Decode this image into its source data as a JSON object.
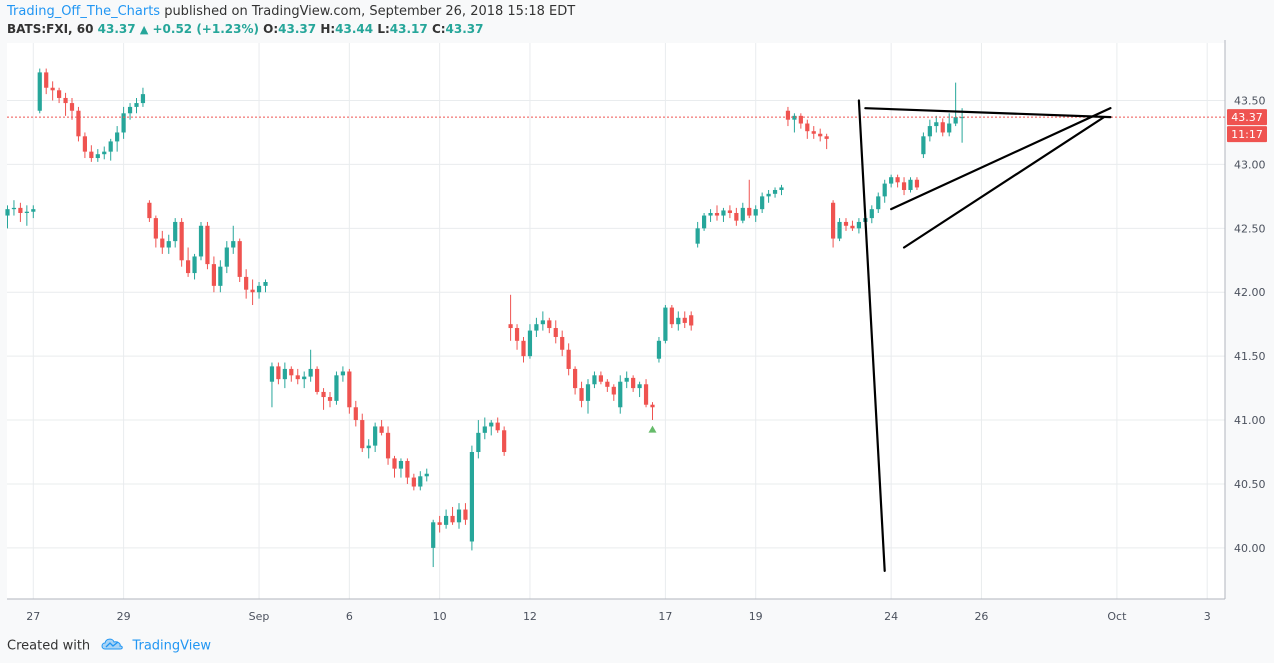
{
  "header": {
    "author": "Trading_Off_The_Charts",
    "publish_text": " published on TradingView.com, September 26, 2018 15:18 EDT"
  },
  "legend": {
    "symbol": "BATS:FXI, 60",
    "last": "43.37",
    "arrow": "▲",
    "change": "+0.52 (+1.23%)",
    "o_label": "O:",
    "o": "43.37",
    "h_label": "H:",
    "h": "43.44",
    "l_label": "L:",
    "l": "43.17",
    "c_label": "C:",
    "c": "43.37"
  },
  "price_axis": {
    "last_price_label": "43.37",
    "countdown_label": "11:17"
  },
  "footer": {
    "created_with": "Created with",
    "brand": "TradingView"
  },
  "colors": {
    "up": "#26a69a",
    "down": "#ef5350",
    "last_price_line": "#ef5350",
    "grid": "#e9ecee",
    "drawing": "#000000",
    "link": "#2196f3"
  },
  "chart_data": {
    "type": "candlestick",
    "symbol": "BATS:FXI",
    "interval": "60",
    "y_ticks": [
      40.0,
      40.5,
      41.0,
      41.5,
      42.0,
      42.5,
      43.0,
      43.5
    ],
    "y_range": [
      39.6,
      43.95
    ],
    "x_ticks": [
      {
        "label": "27",
        "bar": 4
      },
      {
        "label": "29",
        "bar": 18
      },
      {
        "label": "Sep",
        "bar": 39
      },
      {
        "label": "6",
        "bar": 53
      },
      {
        "label": "10",
        "bar": 67
      },
      {
        "label": "12",
        "bar": 81
      },
      {
        "label": "17",
        "bar": 102
      },
      {
        "label": "19",
        "bar": 116
      },
      {
        "label": "24",
        "bar": 137
      },
      {
        "label": "26",
        "bar": 151
      },
      {
        "label": "Oct",
        "bar": 172
      },
      {
        "label": "3",
        "bar": 186
      }
    ],
    "last_price": 43.37,
    "candles": [
      [
        42.6,
        42.68,
        42.5,
        42.65
      ],
      [
        42.65,
        42.72,
        42.6,
        42.66
      ],
      [
        42.66,
        42.7,
        42.55,
        42.62
      ],
      [
        42.62,
        42.68,
        42.52,
        42.63
      ],
      [
        42.63,
        42.68,
        42.58,
        42.65
      ],
      [
        43.42,
        43.75,
        43.4,
        43.72
      ],
      [
        43.72,
        43.75,
        43.55,
        43.6
      ],
      [
        43.6,
        43.65,
        43.5,
        43.58
      ],
      [
        43.58,
        43.6,
        43.48,
        43.52
      ],
      [
        43.52,
        43.56,
        43.38,
        43.48
      ],
      [
        43.48,
        43.52,
        43.35,
        43.42
      ],
      [
        43.42,
        43.45,
        43.18,
        43.22
      ],
      [
        43.22,
        43.25,
        43.05,
        43.1
      ],
      [
        43.1,
        43.15,
        43.02,
        43.05
      ],
      [
        43.05,
        43.12,
        43.02,
        43.08
      ],
      [
        43.08,
        43.14,
        43.04,
        43.1
      ],
      [
        43.1,
        43.2,
        43.03,
        43.18
      ],
      [
        43.18,
        43.3,
        43.1,
        43.25
      ],
      [
        43.25,
        43.45,
        43.2,
        43.4
      ],
      [
        43.4,
        43.48,
        43.35,
        43.45
      ],
      [
        43.45,
        43.52,
        43.4,
        43.48
      ],
      [
        43.48,
        43.6,
        43.45,
        43.55
      ],
      [
        42.7,
        42.72,
        42.55,
        42.58
      ],
      [
        42.58,
        42.6,
        42.35,
        42.42
      ],
      [
        42.42,
        42.48,
        42.3,
        42.35
      ],
      [
        42.35,
        42.45,
        42.3,
        42.4
      ],
      [
        42.4,
        42.58,
        42.35,
        42.55
      ],
      [
        42.55,
        42.58,
        42.2,
        42.25
      ],
      [
        42.25,
        42.35,
        42.12,
        42.15
      ],
      [
        42.15,
        42.3,
        42.1,
        42.28
      ],
      [
        42.28,
        42.55,
        42.25,
        42.52
      ],
      [
        42.52,
        42.55,
        42.18,
        42.22
      ],
      [
        42.22,
        42.28,
        42.0,
        42.05
      ],
      [
        42.05,
        42.25,
        42.0,
        42.2
      ],
      [
        42.2,
        42.4,
        42.15,
        42.35
      ],
      [
        42.35,
        42.52,
        42.3,
        42.4
      ],
      [
        42.4,
        42.42,
        42.08,
        42.12
      ],
      [
        42.12,
        42.18,
        41.95,
        42.02
      ],
      [
        42.02,
        42.1,
        41.9,
        42.0
      ],
      [
        42.0,
        42.08,
        41.95,
        42.05
      ],
      [
        42.05,
        42.1,
        42.0,
        42.08
      ],
      [
        41.3,
        41.45,
        41.1,
        41.42
      ],
      [
        41.42,
        41.45,
        41.28,
        41.32
      ],
      [
        41.32,
        41.45,
        41.25,
        41.4
      ],
      [
        41.4,
        41.42,
        41.3,
        41.35
      ],
      [
        41.35,
        41.4,
        41.28,
        41.32
      ],
      [
        41.32,
        41.38,
        41.25,
        41.34
      ],
      [
        41.34,
        41.55,
        41.3,
        41.4
      ],
      [
        41.4,
        41.42,
        41.2,
        41.22
      ],
      [
        41.22,
        41.25,
        41.08,
        41.18
      ],
      [
        41.18,
        41.22,
        41.1,
        41.15
      ],
      [
        41.15,
        41.38,
        41.12,
        41.35
      ],
      [
        41.35,
        41.42,
        41.3,
        41.38
      ],
      [
        41.38,
        41.4,
        41.05,
        41.1
      ],
      [
        41.1,
        41.15,
        40.95,
        41.0
      ],
      [
        41.0,
        41.05,
        40.75,
        40.78
      ],
      [
        40.78,
        40.85,
        40.7,
        40.8
      ],
      [
        40.8,
        40.98,
        40.75,
        40.95
      ],
      [
        40.95,
        41.0,
        40.88,
        40.9
      ],
      [
        40.9,
        40.95,
        40.65,
        40.7
      ],
      [
        40.7,
        40.72,
        40.55,
        40.62
      ],
      [
        40.62,
        40.7,
        40.55,
        40.68
      ],
      [
        40.68,
        40.7,
        40.5,
        40.55
      ],
      [
        40.55,
        40.58,
        40.45,
        40.48
      ],
      [
        40.48,
        40.6,
        40.45,
        40.56
      ],
      [
        40.56,
        40.62,
        40.52,
        40.58
      ],
      [
        40.0,
        40.22,
        39.85,
        40.2
      ],
      [
        40.2,
        40.25,
        40.12,
        40.18
      ],
      [
        40.18,
        40.3,
        40.15,
        40.25
      ],
      [
        40.25,
        40.32,
        40.18,
        40.2
      ],
      [
        40.2,
        40.35,
        40.15,
        40.3
      ],
      [
        40.3,
        40.35,
        40.18,
        40.22
      ],
      [
        40.05,
        40.8,
        39.98,
        40.75
      ],
      [
        40.75,
        41.0,
        40.7,
        40.9
      ],
      [
        40.9,
        41.02,
        40.85,
        40.95
      ],
      [
        40.95,
        41.0,
        40.88,
        40.98
      ],
      [
        40.98,
        41.02,
        40.9,
        40.92
      ],
      [
        40.92,
        40.95,
        40.72,
        40.75
      ],
      [
        41.75,
        41.98,
        41.62,
        41.72
      ],
      [
        41.72,
        41.75,
        41.55,
        41.62
      ],
      [
        41.62,
        41.65,
        41.45,
        41.5
      ],
      [
        41.5,
        41.75,
        41.48,
        41.7
      ],
      [
        41.7,
        41.8,
        41.65,
        41.75
      ],
      [
        41.75,
        41.85,
        41.7,
        41.78
      ],
      [
        41.78,
        41.8,
        41.68,
        41.72
      ],
      [
        41.72,
        41.78,
        41.6,
        41.65
      ],
      [
        41.65,
        41.7,
        41.5,
        41.55
      ],
      [
        41.55,
        41.6,
        41.35,
        41.4
      ],
      [
        41.4,
        41.42,
        41.2,
        41.25
      ],
      [
        41.25,
        41.3,
        41.1,
        41.15
      ],
      [
        41.15,
        41.32,
        41.05,
        41.28
      ],
      [
        41.28,
        41.38,
        41.25,
        41.35
      ],
      [
        41.35,
        41.38,
        41.28,
        41.3
      ],
      [
        41.3,
        41.32,
        41.22,
        41.26
      ],
      [
        41.26,
        41.28,
        41.15,
        41.2
      ],
      [
        41.1,
        41.35,
        41.05,
        41.3
      ],
      [
        41.3,
        41.38,
        41.25,
        41.33
      ],
      [
        41.33,
        41.35,
        41.22,
        41.25
      ],
      [
        41.25,
        41.3,
        41.18,
        41.28
      ],
      [
        41.28,
        41.32,
        41.1,
        41.12
      ],
      [
        41.12,
        41.14,
        41.0,
        41.1
      ],
      [
        41.48,
        41.65,
        41.45,
        41.62
      ],
      [
        41.62,
        41.9,
        41.6,
        41.88
      ],
      [
        41.88,
        41.9,
        41.72,
        41.75
      ],
      [
        41.75,
        41.85,
        41.7,
        41.8
      ],
      [
        41.8,
        41.85,
        41.72,
        41.76
      ],
      [
        41.82,
        41.85,
        41.7,
        41.74
      ],
      [
        42.38,
        42.55,
        42.35,
        42.5
      ],
      [
        42.5,
        42.62,
        42.48,
        42.6
      ],
      [
        42.6,
        42.65,
        42.55,
        42.62
      ],
      [
        42.62,
        42.68,
        42.56,
        42.6
      ],
      [
        42.6,
        42.66,
        42.55,
        42.64
      ],
      [
        42.64,
        42.68,
        42.58,
        42.62
      ],
      [
        42.62,
        42.66,
        42.52,
        42.56
      ],
      [
        42.56,
        42.7,
        42.54,
        42.66
      ],
      [
        42.66,
        42.88,
        42.58,
        42.6
      ],
      [
        42.6,
        42.68,
        42.55,
        42.65
      ],
      [
        42.65,
        42.78,
        42.62,
        42.75
      ],
      [
        42.75,
        42.8,
        42.7,
        42.77
      ],
      [
        42.77,
        42.82,
        42.74,
        42.8
      ],
      [
        42.8,
        42.84,
        42.76,
        42.82
      ],
      [
        43.42,
        43.45,
        43.3,
        43.35
      ],
      [
        43.35,
        43.4,
        43.25,
        43.38
      ],
      [
        43.38,
        43.4,
        43.28,
        43.32
      ],
      [
        43.32,
        43.35,
        43.2,
        43.26
      ],
      [
        43.26,
        43.3,
        43.2,
        43.24
      ],
      [
        43.24,
        43.28,
        43.18,
        43.22
      ],
      [
        43.22,
        43.24,
        43.12,
        43.2
      ],
      [
        42.7,
        42.72,
        42.35,
        42.42
      ],
      [
        42.42,
        42.58,
        42.4,
        42.55
      ],
      [
        42.55,
        42.58,
        42.48,
        42.52
      ],
      [
        42.52,
        42.56,
        42.48,
        42.5
      ],
      [
        42.5,
        42.58,
        42.46,
        42.55
      ],
      [
        42.55,
        42.62,
        42.5,
        42.58
      ],
      [
        42.58,
        42.68,
        42.54,
        42.65
      ],
      [
        42.65,
        42.78,
        42.62,
        42.75
      ],
      [
        42.75,
        42.88,
        42.7,
        42.85
      ],
      [
        42.85,
        42.92,
        42.82,
        42.9
      ],
      [
        42.9,
        42.92,
        42.82,
        42.86
      ],
      [
        42.86,
        42.9,
        42.76,
        42.8
      ],
      [
        42.8,
        42.9,
        42.78,
        42.88
      ],
      [
        42.88,
        42.9,
        42.8,
        42.82
      ],
      [
        43.08,
        43.25,
        43.05,
        43.22
      ],
      [
        43.22,
        43.35,
        43.18,
        43.3
      ],
      [
        43.3,
        43.38,
        43.25,
        43.33
      ],
      [
        43.33,
        43.36,
        43.22,
        43.25
      ],
      [
        43.25,
        43.4,
        43.22,
        43.32
      ],
      [
        43.32,
        43.64,
        43.3,
        43.37
      ],
      [
        43.37,
        43.44,
        43.17,
        43.37
      ]
    ],
    "markers": [
      {
        "bar": 100,
        "price": 40.98,
        "shape": "triangle-up"
      }
    ],
    "drawings": [
      {
        "type": "trendline",
        "from": {
          "bar": 132,
          "price": 43.5
        },
        "to": {
          "bar": 136,
          "price": 39.82
        }
      },
      {
        "type": "trendline",
        "from": {
          "bar": 133,
          "price": 43.44
        },
        "to": {
          "bar": 171,
          "price": 43.37
        }
      },
      {
        "type": "trendline",
        "from": {
          "bar": 137,
          "price": 42.65
        },
        "to": {
          "bar": 171,
          "price": 43.44
        }
      },
      {
        "type": "trendline",
        "from": {
          "bar": 139,
          "price": 42.35
        },
        "to": {
          "bar": 170,
          "price": 43.37
        }
      }
    ]
  }
}
